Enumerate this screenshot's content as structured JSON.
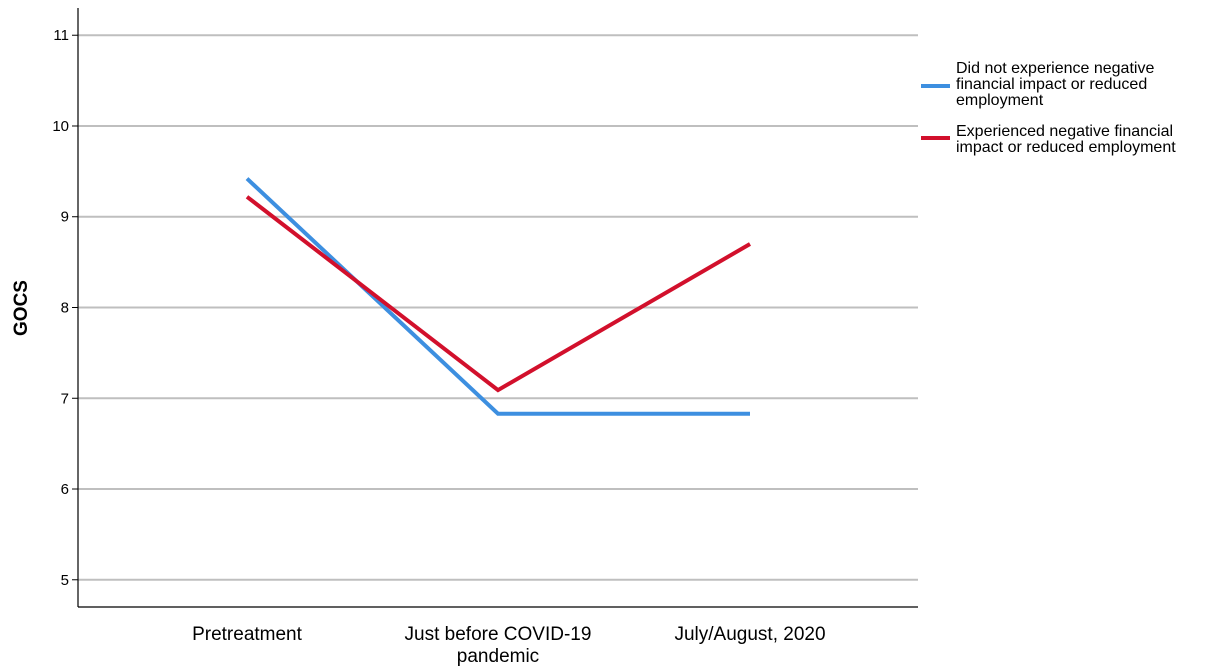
{
  "chart_data": {
    "type": "line",
    "title": "",
    "xlabel": "",
    "ylabel": "GOCS",
    "categories": [
      [
        "Pretreatment"
      ],
      [
        "Just before COVID-19",
        "pandemic"
      ],
      [
        "July/August, 2020"
      ]
    ],
    "y_ticks": [
      5,
      6,
      7,
      8,
      9,
      10,
      11
    ],
    "ylim": [
      4.7,
      11.3
    ],
    "grid": true,
    "legend_position": "right",
    "series": [
      {
        "name": "Did not experience negative financial impact or reduced employment",
        "name_lines": [
          "Did not experience negative",
          "financial impact or reduced",
          "employment"
        ],
        "color": "#3d8fe0",
        "values": [
          9.42,
          6.83,
          6.83
        ]
      },
      {
        "name": "Experienced negative financial impact or reduced employment",
        "name_lines": [
          "Experienced negative financial",
          "impact or reduced employment"
        ],
        "color": "#d2102c",
        "values": [
          9.22,
          7.09,
          8.7
        ]
      }
    ]
  }
}
